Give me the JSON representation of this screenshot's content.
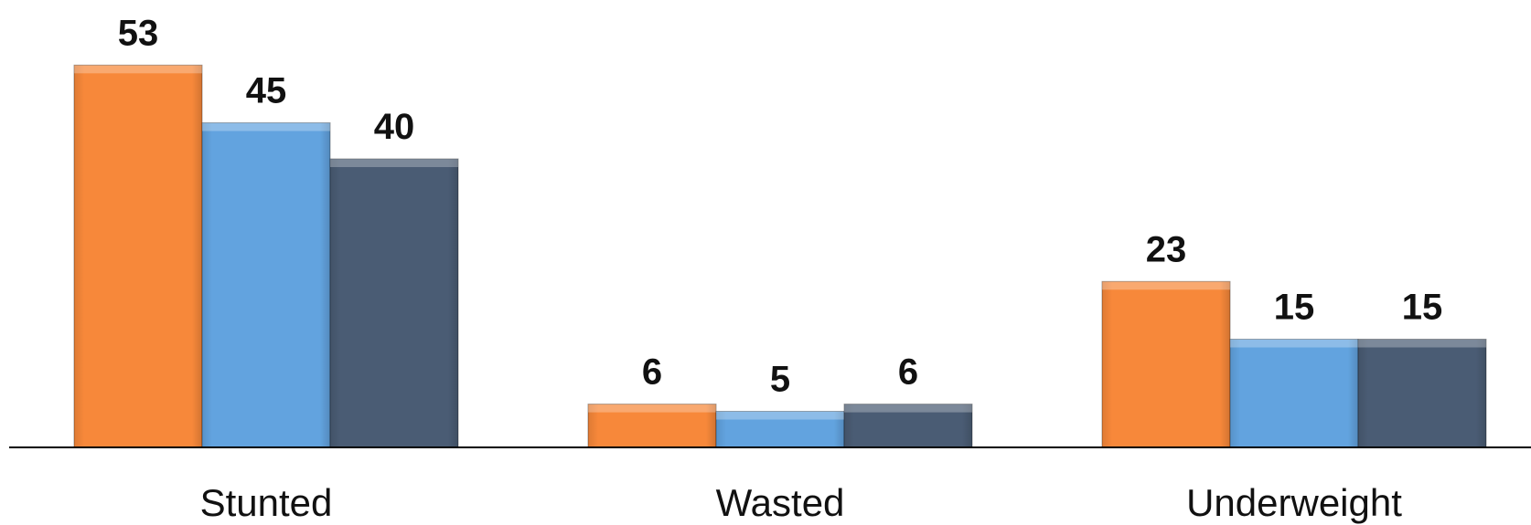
{
  "chart_data": {
    "type": "bar",
    "categories": [
      "Stunted",
      "Wasted",
      "Underweight"
    ],
    "series": [
      {
        "values": [
          53,
          6,
          23
        ],
        "color": "#F7883A"
      },
      {
        "values": [
          45,
          5,
          15
        ],
        "color": "#62A3DF"
      },
      {
        "values": [
          40,
          6,
          15
        ],
        "color": "#4A5C74"
      }
    ],
    "ylim": [
      0,
      60
    ],
    "grid": false,
    "legend": "none",
    "data_labels": true
  }
}
